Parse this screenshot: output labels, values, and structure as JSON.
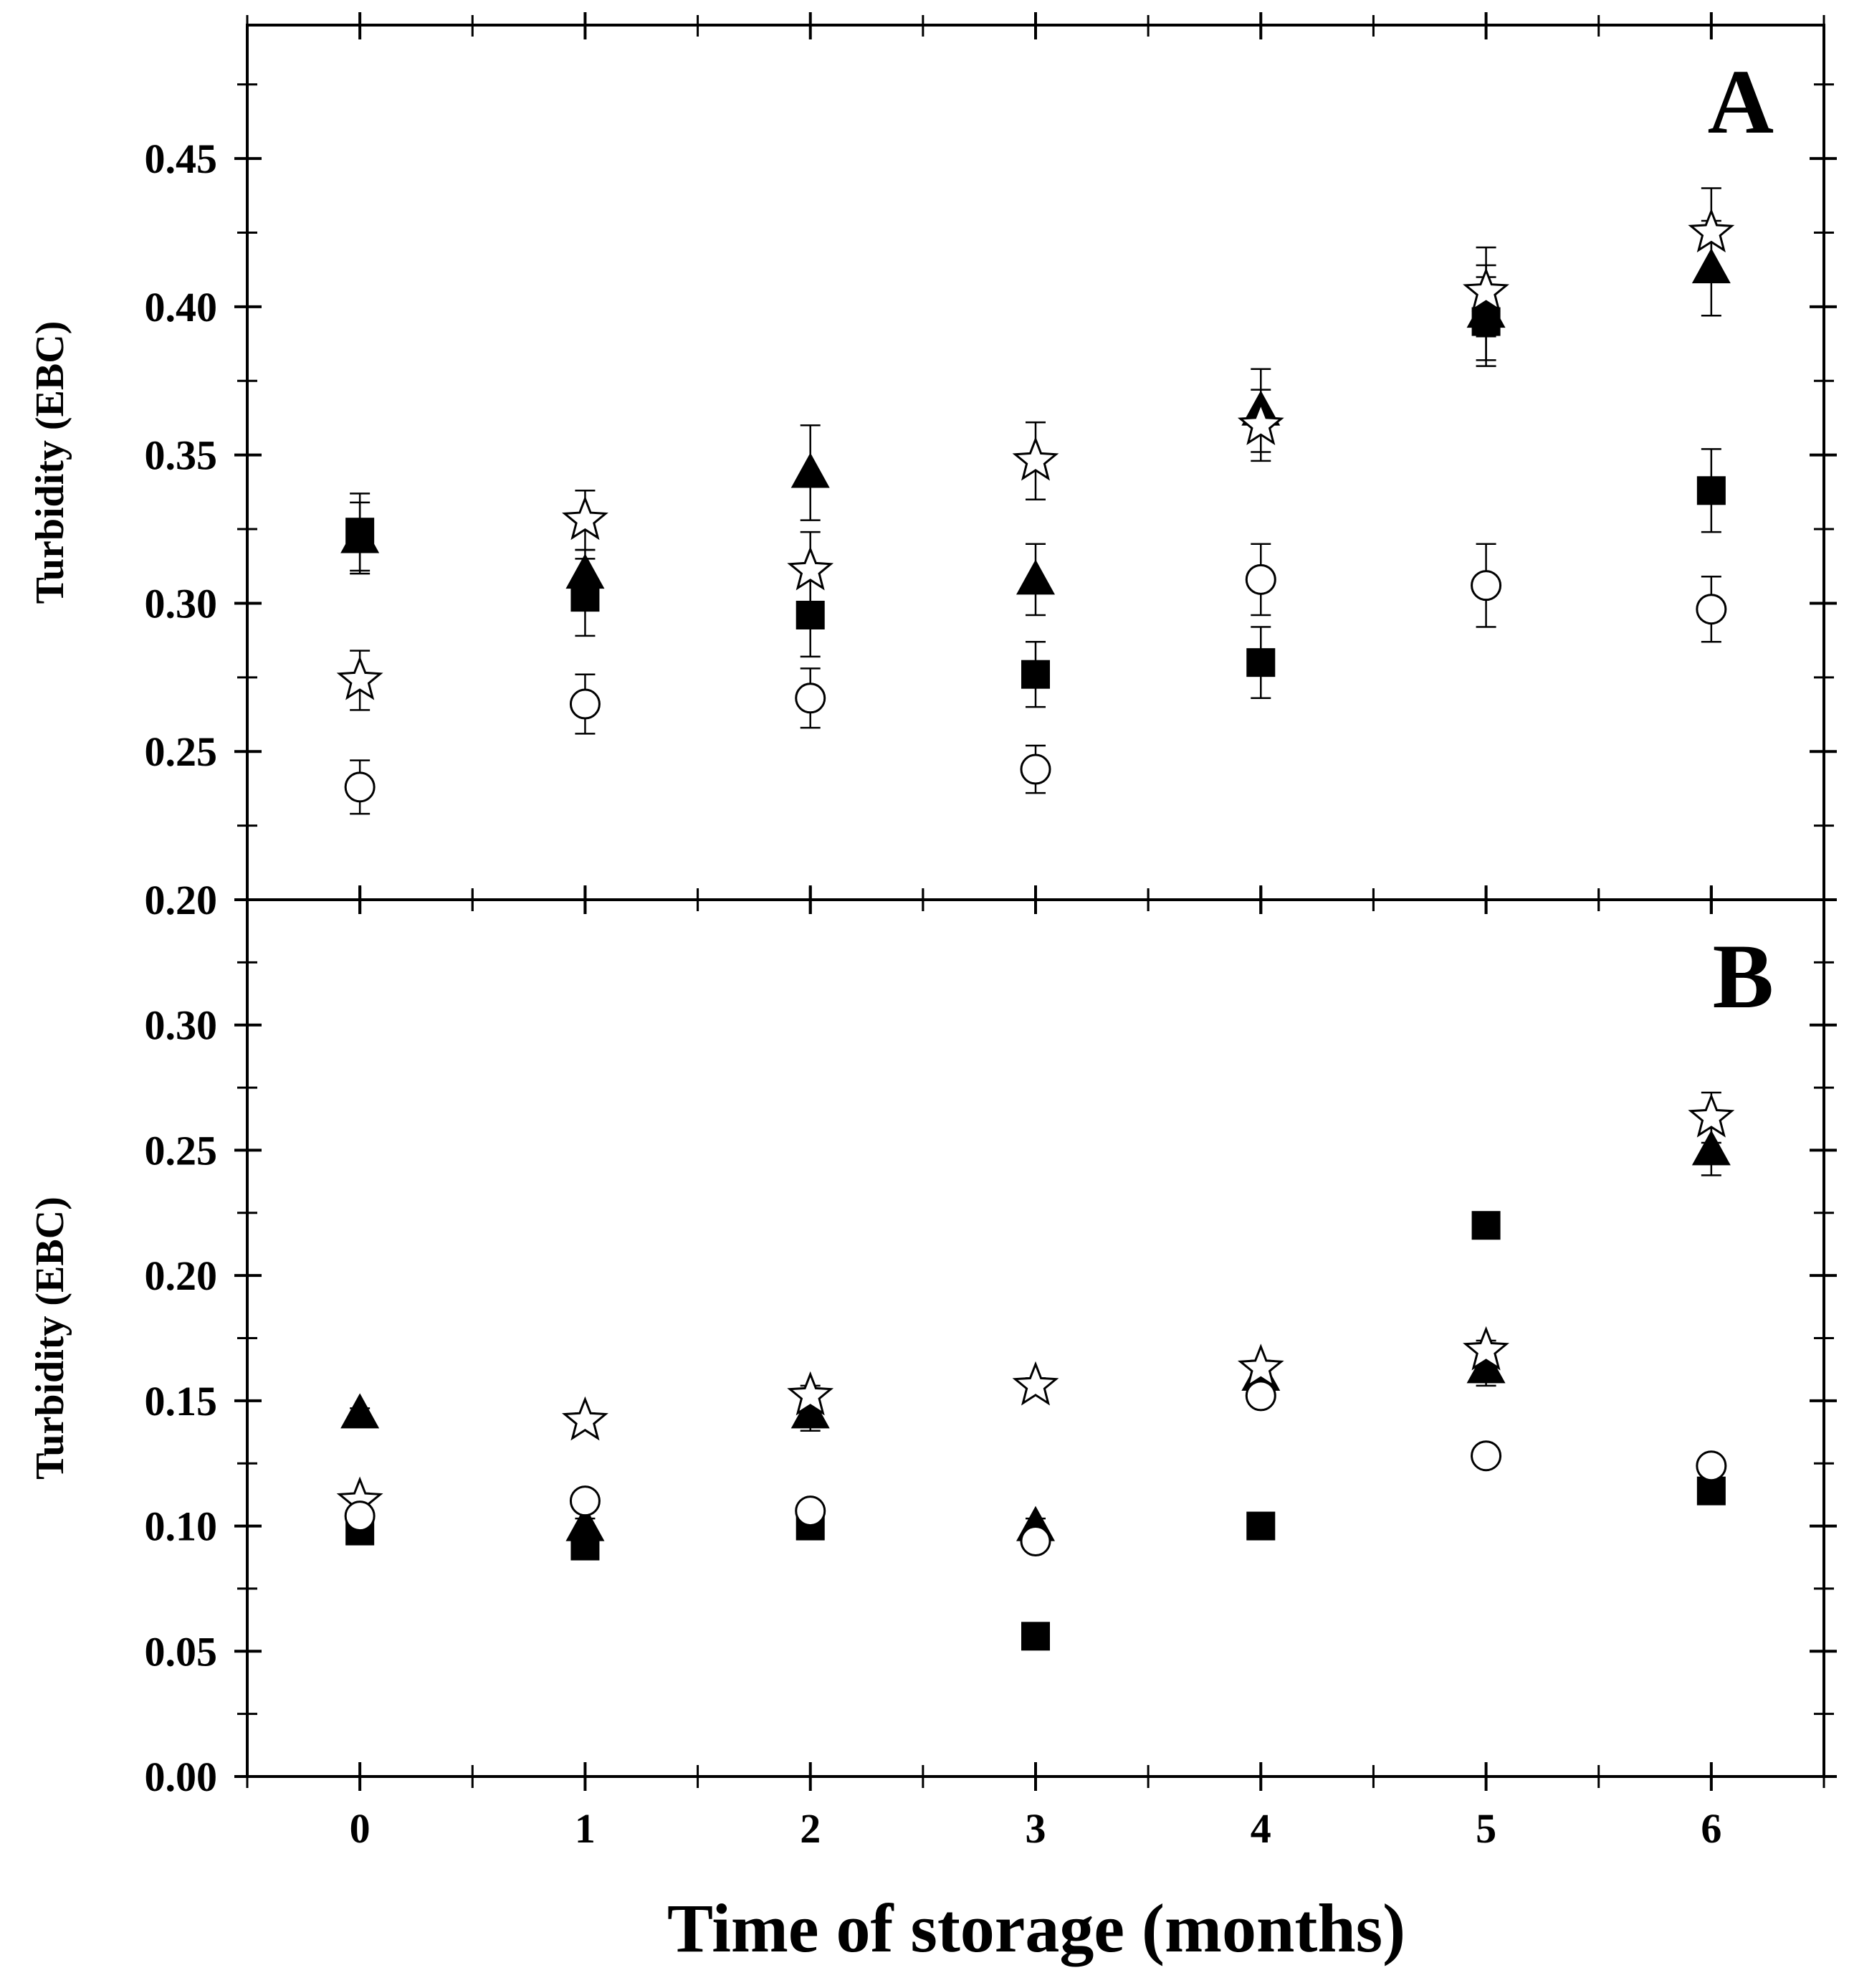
{
  "xlabel": "Time of storage (months)",
  "chart_data": [
    {
      "type": "scatter",
      "panel_label": "A",
      "ylabel": "Turbidity (EBC)",
      "xlim": [
        -0.5,
        6.5
      ],
      "ylim": [
        0.2,
        0.495
      ],
      "x_ticks": [
        0,
        1,
        2,
        3,
        4,
        5,
        6
      ],
      "y_ticks": [
        0.2,
        0.25,
        0.3,
        0.35,
        0.4,
        0.45
      ],
      "y_tick_labels": [
        "0.20",
        "0.25",
        "0.30",
        "0.35",
        "0.40",
        "0.45"
      ],
      "grid": false,
      "series": [
        {
          "marker": "filled-square",
          "x": [
            0,
            1,
            2,
            3,
            4,
            5,
            6
          ],
          "y": [
            0.324,
            0.302,
            0.296,
            0.276,
            0.28,
            0.395,
            0.338
          ],
          "err": [
            0.013,
            0.013,
            0.014,
            0.011,
            0.012,
            0.015,
            0.014
          ]
        },
        {
          "marker": "filled-triangle",
          "x": [
            0,
            1,
            2,
            3,
            4,
            5,
            6
          ],
          "y": [
            0.322,
            0.31,
            0.344,
            0.308,
            0.365,
            0.398,
            0.413
          ],
          "err": [
            0.012,
            0.008,
            0.016,
            0.012,
            0.014,
            0.016,
            0.016
          ]
        },
        {
          "marker": "open-star",
          "x": [
            0,
            1,
            2,
            3,
            4,
            5,
            6
          ],
          "y": [
            0.274,
            0.328,
            0.311,
            0.348,
            0.36,
            0.405,
            0.425
          ],
          "err": [
            0.01,
            0.01,
            0.013,
            0.013,
            0.012,
            0.015,
            0.015
          ]
        },
        {
          "marker": "open-circle",
          "x": [
            0,
            1,
            2,
            3,
            4,
            5,
            6
          ],
          "y": [
            0.238,
            0.266,
            0.268,
            0.244,
            0.308,
            0.306,
            0.298
          ],
          "err": [
            0.009,
            0.01,
            0.01,
            0.008,
            0.012,
            0.014,
            0.011
          ]
        }
      ]
    },
    {
      "type": "scatter",
      "panel_label": "B",
      "ylabel": "Turbidity (EBC)",
      "xlim": [
        -0.5,
        6.5
      ],
      "ylim": [
        0.0,
        0.35
      ],
      "x_ticks": [
        0,
        1,
        2,
        3,
        4,
        5,
        6
      ],
      "y_ticks": [
        0.0,
        0.05,
        0.1,
        0.15,
        0.2,
        0.25,
        0.3
      ],
      "y_tick_labels": [
        "0.00",
        "0.05",
        "0.10",
        "0.15",
        "0.20",
        "0.25",
        "0.30"
      ],
      "grid": false,
      "series": [
        {
          "marker": "filled-square",
          "x": [
            0,
            1,
            2,
            3,
            4,
            5,
            6
          ],
          "y": [
            0.098,
            0.092,
            0.1,
            0.056,
            0.1,
            0.22,
            0.114
          ],
          "err": [
            0.002,
            0.002,
            0.002,
            0.002,
            0.002,
            0.005,
            0.002
          ]
        },
        {
          "marker": "filled-triangle",
          "x": [
            0,
            1,
            2,
            3,
            4,
            5,
            6
          ],
          "y": [
            0.145,
            0.1,
            0.145,
            0.1,
            0.16,
            0.163,
            0.25
          ],
          "err": [
            0.002,
            0.003,
            0.007,
            0.003,
            0.004,
            0.007,
            0.01
          ]
        },
        {
          "marker": "open-star",
          "x": [
            0,
            1,
            2,
            3,
            4,
            5,
            6
          ],
          "y": [
            0.11,
            0.142,
            0.152,
            0.156,
            0.163,
            0.17,
            0.263
          ],
          "err": [
            0.003,
            0.003,
            0.004,
            0.003,
            0.003,
            0.004,
            0.01
          ]
        },
        {
          "marker": "open-circle",
          "x": [
            0,
            1,
            2,
            3,
            4,
            5,
            6
          ],
          "y": [
            0.104,
            0.11,
            0.106,
            0.094,
            0.152,
            0.128,
            0.124
          ],
          "err": [
            0.002,
            0.002,
            0.002,
            0.002,
            0.003,
            0.003,
            0.002
          ]
        }
      ]
    }
  ]
}
